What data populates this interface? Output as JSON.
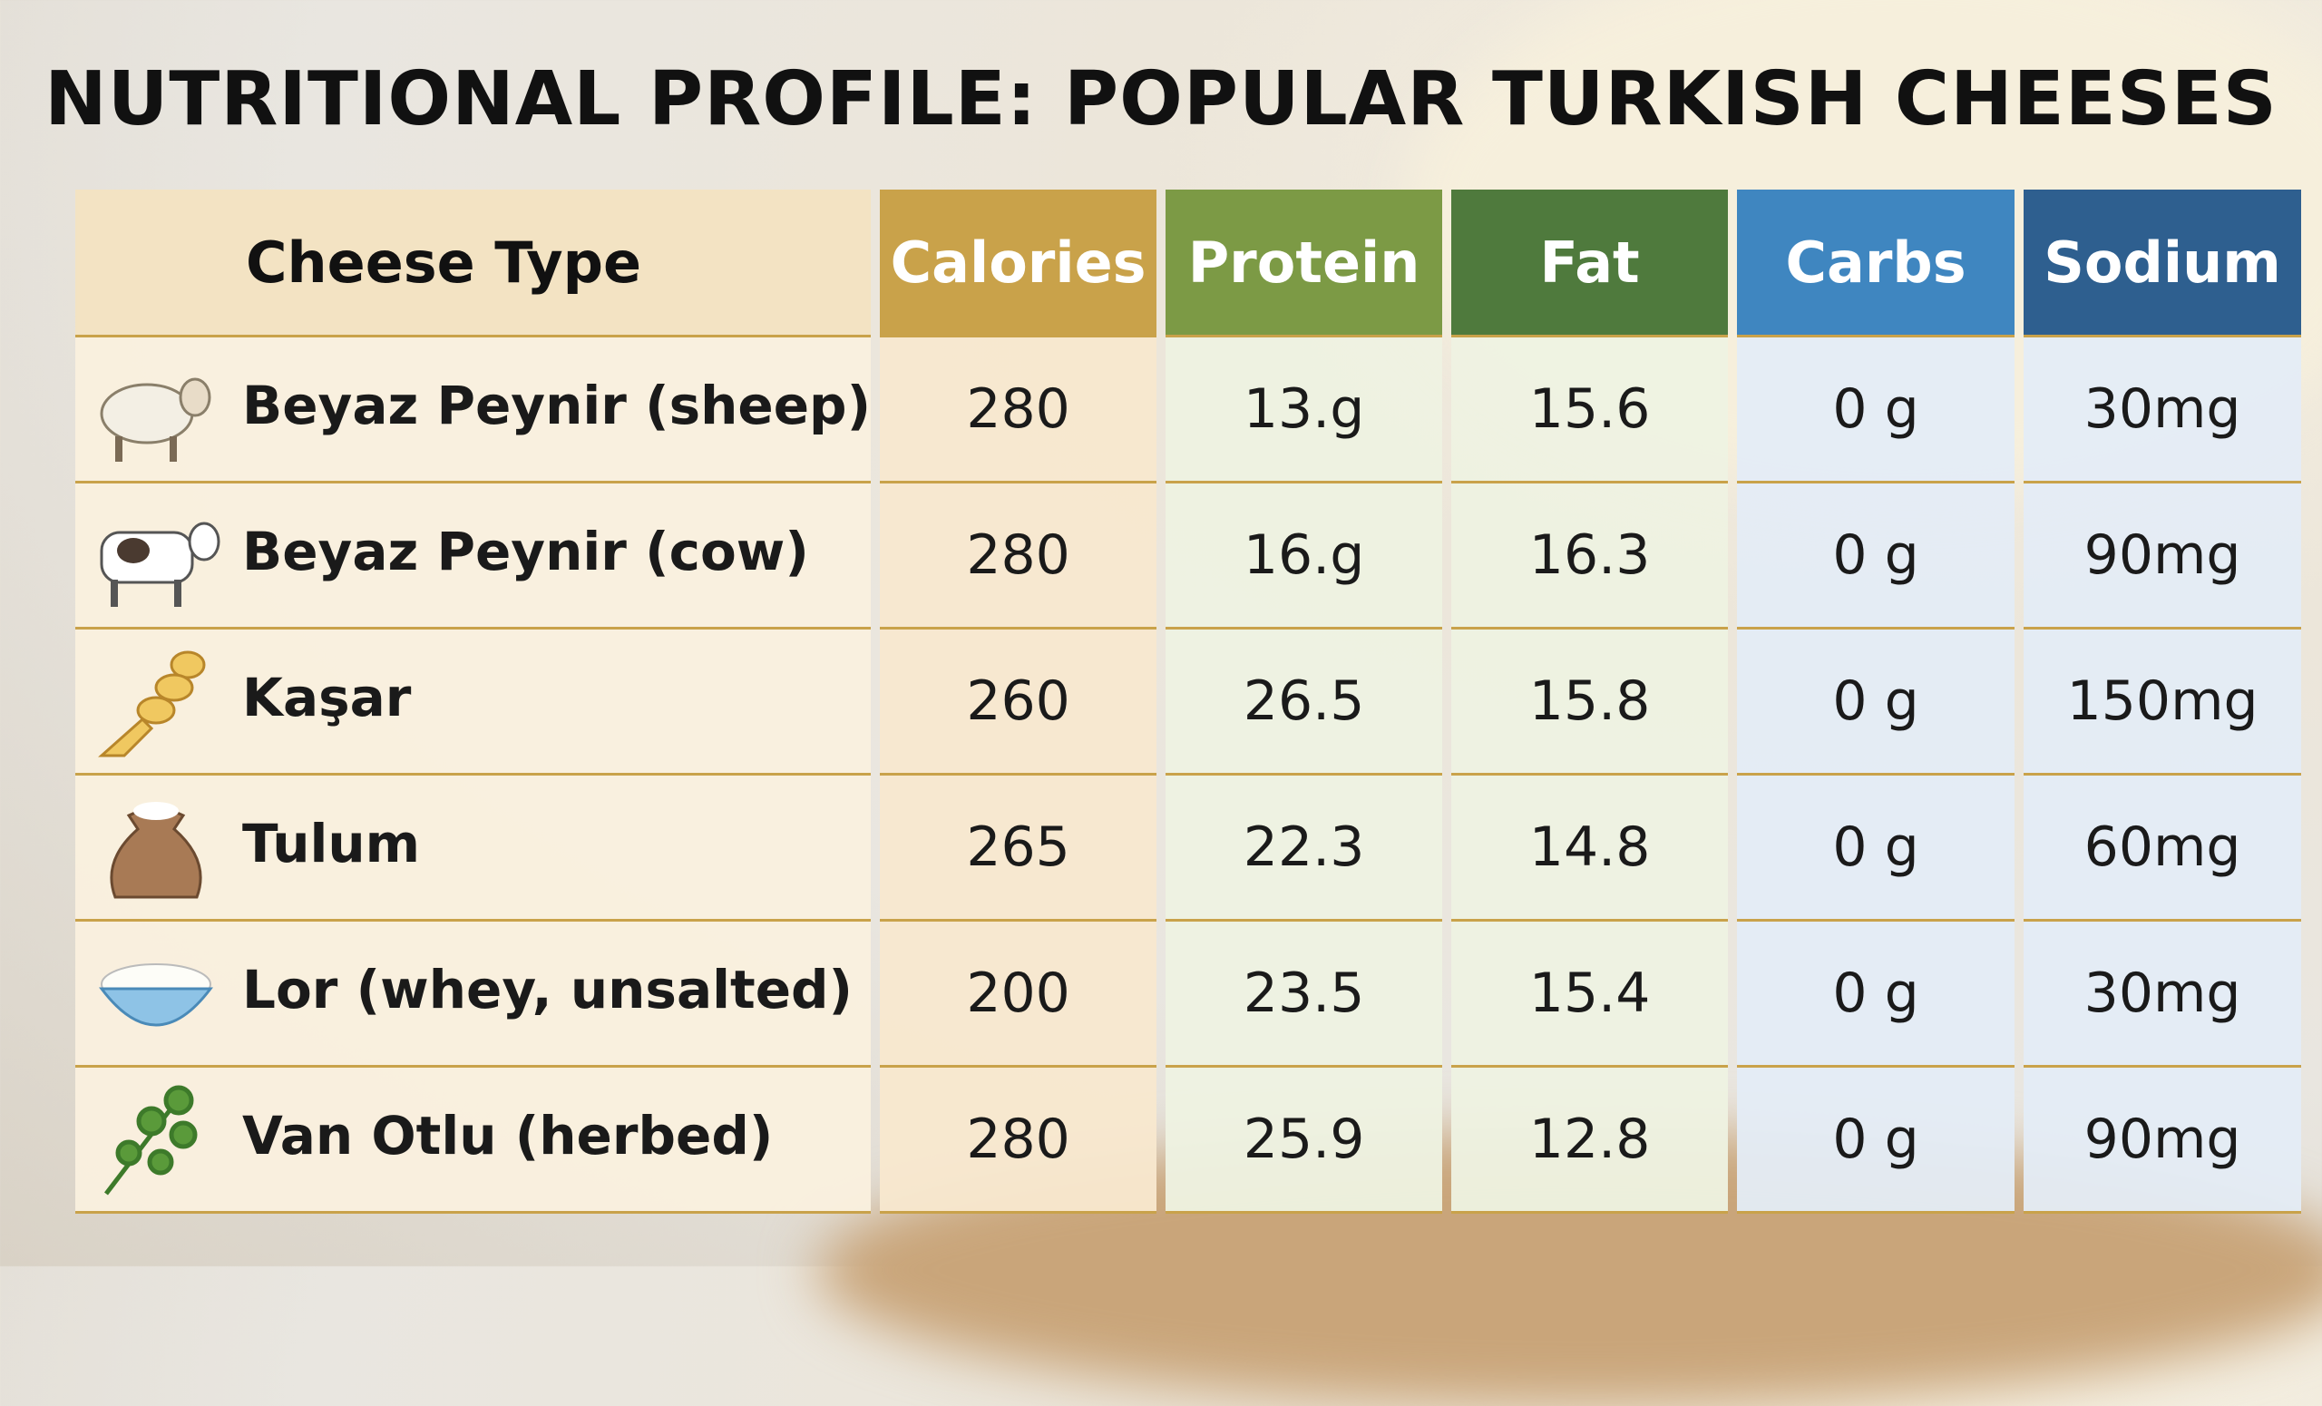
{
  "title": "NUTRITIONAL PROFILE: POPULAR TURKISH CHEESES",
  "colors": {
    "calories": "#c9a24a",
    "protein": "#7c9a45",
    "fat": "#4f7a3d",
    "carbs": "#3f86c0",
    "sodium": "#2e5f8f",
    "name_header": "#f3e3c3"
  },
  "headers": [
    "Cheese Type",
    "Calories",
    "Protein",
    "Fat",
    "Carbs",
    "Sodium"
  ],
  "rows": [
    {
      "icon": "sheep-icon",
      "name": "Beyaz Peynir (sheep)",
      "calories": "280",
      "protein": "13.g",
      "fat": "15.6",
      "carbs": "0 g",
      "sodium": "30mg"
    },
    {
      "icon": "cow-icon",
      "name": "Beyaz Peynir (cow)",
      "calories": "280",
      "protein": "16.g",
      "fat": "16.3",
      "carbs": "0 g",
      "sodium": "90mg"
    },
    {
      "icon": "braided-cheese-icon",
      "name": "Kaşar",
      "calories": "260",
      "protein": "26.5",
      "fat": "15.8",
      "carbs": "0 g",
      "sodium": "150mg"
    },
    {
      "icon": "sack-icon",
      "name": "Tulum",
      "calories": "265",
      "protein": "22.3",
      "fat": "14.8",
      "carbs": "0 g",
      "sodium": "60mg"
    },
    {
      "icon": "bowl-icon",
      "name": "Lor (whey, unsalted)",
      "calories": "200",
      "protein": "23.5",
      "fat": "15.4",
      "carbs": "0 g",
      "sodium": "30mg"
    },
    {
      "icon": "herb-icon",
      "name": "Van Otlu (herbed)",
      "calories": "280",
      "protein": "25.9",
      "fat": "12.8",
      "carbs": "0 g",
      "sodium": "90mg"
    }
  ]
}
